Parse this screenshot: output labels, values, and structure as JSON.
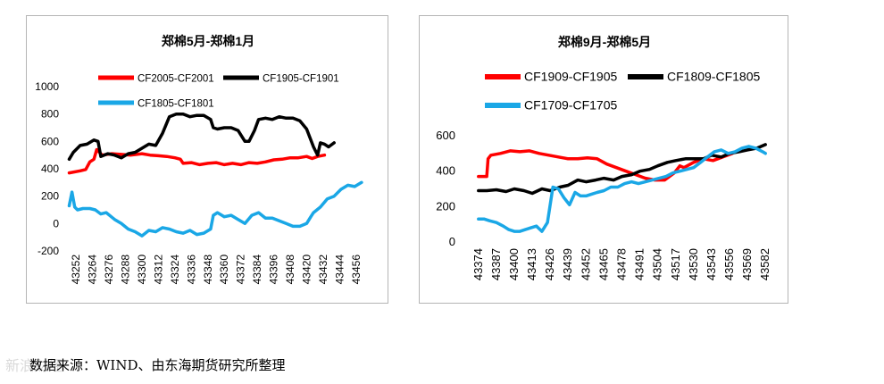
{
  "chart_data": [
    {
      "type": "line",
      "title": "郑棉5月-郑棉1月",
      "legend_position": "top",
      "ylim": [
        -200,
        1000
      ],
      "yticks": [
        -200,
        0,
        200,
        400,
        600,
        800,
        1000
      ],
      "xticks": [
        43252,
        43264,
        43276,
        43288,
        43300,
        43312,
        43324,
        43336,
        43348,
        43360,
        43372,
        43384,
        43396,
        43408,
        43420,
        43432,
        43444,
        43456
      ],
      "xlim": [
        43246,
        43462
      ],
      "series": [
        {
          "name": "CF2005-CF2001",
          "color": "#ff0000",
          "x": [
            43247,
            43255,
            43259,
            43262,
            43265,
            43267,
            43271,
            43278,
            43285,
            43292,
            43300,
            43306,
            43312,
            43318,
            43324,
            43328,
            43330,
            43336,
            43342,
            43348,
            43354,
            43360,
            43366,
            43372,
            43378,
            43384,
            43390,
            43396,
            43402,
            43408,
            43414,
            43420,
            43424,
            43428,
            43433
          ],
          "values": [
            370,
            385,
            395,
            450,
            470,
            540,
            500,
            510,
            505,
            500,
            510,
            500,
            495,
            490,
            480,
            470,
            440,
            445,
            430,
            440,
            445,
            430,
            440,
            430,
            445,
            440,
            450,
            465,
            470,
            480,
            480,
            490,
            475,
            490,
            500
          ]
        },
        {
          "name": "CF1905-CF1901",
          "color": "#000000",
          "x": [
            43247,
            43250,
            43255,
            43260,
            43265,
            43268,
            43270,
            43275,
            43280,
            43285,
            43290,
            43295,
            43300,
            43305,
            43310,
            43315,
            43320,
            43325,
            43330,
            43335,
            43340,
            43345,
            43350,
            43352,
            43355,
            43360,
            43365,
            43370,
            43375,
            43378,
            43382,
            43385,
            43390,
            43395,
            43400,
            43405,
            43410,
            43415,
            43420,
            43425,
            43428,
            43430,
            43433,
            43436,
            43440
          ],
          "values": [
            470,
            520,
            570,
            580,
            610,
            600,
            490,
            510,
            500,
            480,
            510,
            520,
            550,
            580,
            570,
            660,
            780,
            800,
            800,
            780,
            790,
            790,
            760,
            700,
            690,
            700,
            700,
            680,
            600,
            600,
            680,
            760,
            770,
            760,
            780,
            770,
            770,
            750,
            690,
            560,
            500,
            590,
            580,
            560,
            590
          ]
        },
        {
          "name": "CF1805-CF1801",
          "color": "#1aa7e6",
          "x": [
            43247,
            43249,
            43251,
            43253,
            43257,
            43262,
            43266,
            43270,
            43274,
            43280,
            43285,
            43290,
            43295,
            43300,
            43305,
            43310,
            43315,
            43320,
            43325,
            43330,
            43335,
            43340,
            43345,
            43350,
            43352,
            43355,
            43360,
            43365,
            43370,
            43375,
            43380,
            43385,
            43390,
            43395,
            43400,
            43405,
            43410,
            43415,
            43420,
            43423,
            43425,
            43430,
            43435,
            43440,
            43445,
            43450,
            43455,
            43460
          ],
          "values": [
            130,
            230,
            120,
            100,
            110,
            110,
            100,
            70,
            80,
            30,
            0,
            -40,
            -60,
            -90,
            -50,
            -60,
            -30,
            -40,
            -60,
            -70,
            -50,
            -80,
            -70,
            -40,
            60,
            80,
            50,
            60,
            30,
            0,
            60,
            80,
            40,
            40,
            20,
            0,
            -20,
            -20,
            0,
            50,
            80,
            120,
            180,
            200,
            250,
            280,
            270,
            300
          ]
        }
      ]
    },
    {
      "type": "line",
      "title": "郑棉9月-郑棉5月",
      "legend_position": "top",
      "ylim": [
        0,
        600
      ],
      "yticks": [
        0,
        200,
        400,
        600
      ],
      "xticks": [
        43374,
        43387,
        43400,
        43413,
        43426,
        43439,
        43452,
        43465,
        43478,
        43491,
        43504,
        43517,
        43530,
        43543,
        43556,
        43569,
        43582
      ],
      "xlim": [
        43367,
        43589
      ],
      "series": [
        {
          "name": "CF1909-CF1905",
          "color": "#ff0000",
          "x": [
            43374,
            43378,
            43380,
            43381,
            43383,
            43390,
            43397,
            43404,
            43411,
            43418,
            43425,
            43432,
            43439,
            43446,
            43453,
            43460,
            43467,
            43474,
            43481,
            43488,
            43495,
            43502,
            43509,
            43516,
            43520,
            43523,
            43530,
            43537,
            43544,
            43551,
            43558
          ],
          "values": [
            370,
            370,
            370,
            470,
            490,
            500,
            515,
            510,
            515,
            500,
            490,
            480,
            470,
            470,
            475,
            470,
            440,
            420,
            400,
            380,
            360,
            350,
            350,
            390,
            430,
            420,
            450,
            470,
            460,
            480,
            500
          ]
        },
        {
          "name": "CF1809-CF1805",
          "color": "#000000",
          "x": [
            43374,
            43380,
            43387,
            43394,
            43400,
            43407,
            43413,
            43420,
            43426,
            43433,
            43439,
            43446,
            43452,
            43459,
            43465,
            43472,
            43478,
            43485,
            43491,
            43498,
            43504,
            43511,
            43517,
            43524,
            43530,
            43537,
            43543,
            43550,
            43556,
            43563,
            43569,
            43576,
            43582
          ],
          "values": [
            290,
            290,
            295,
            285,
            300,
            290,
            275,
            300,
            290,
            310,
            320,
            350,
            340,
            350,
            360,
            350,
            370,
            380,
            400,
            410,
            430,
            450,
            460,
            470,
            470,
            470,
            490,
            480,
            500,
            510,
            520,
            530,
            550
          ]
        },
        {
          "name": "CF1709-CF1705",
          "color": "#1aa7e6",
          "x": [
            43374,
            43378,
            43382,
            43387,
            43392,
            43396,
            43400,
            43404,
            43408,
            43412,
            43416,
            43420,
            43424,
            43428,
            43432,
            43436,
            43440,
            43444,
            43448,
            43452,
            43456,
            43460,
            43465,
            43470,
            43475,
            43480,
            43485,
            43490,
            43495,
            43500,
            43505,
            43510,
            43515,
            43520,
            43525,
            43530,
            43535,
            43540,
            43545,
            43550,
            43555,
            43560,
            43565,
            43570,
            43575,
            43580,
            43582
          ],
          "values": [
            130,
            130,
            120,
            110,
            90,
            70,
            60,
            60,
            70,
            80,
            90,
            60,
            110,
            310,
            300,
            250,
            210,
            280,
            260,
            260,
            270,
            280,
            290,
            310,
            310,
            330,
            340,
            330,
            340,
            350,
            360,
            370,
            390,
            400,
            410,
            420,
            450,
            480,
            510,
            520,
            500,
            510,
            530,
            540,
            530,
            510,
            500
          ]
        }
      ]
    }
  ],
  "source_text": "数据来源：WIND、由东海期货研究所整理",
  "watermark_text": "新浪财经"
}
